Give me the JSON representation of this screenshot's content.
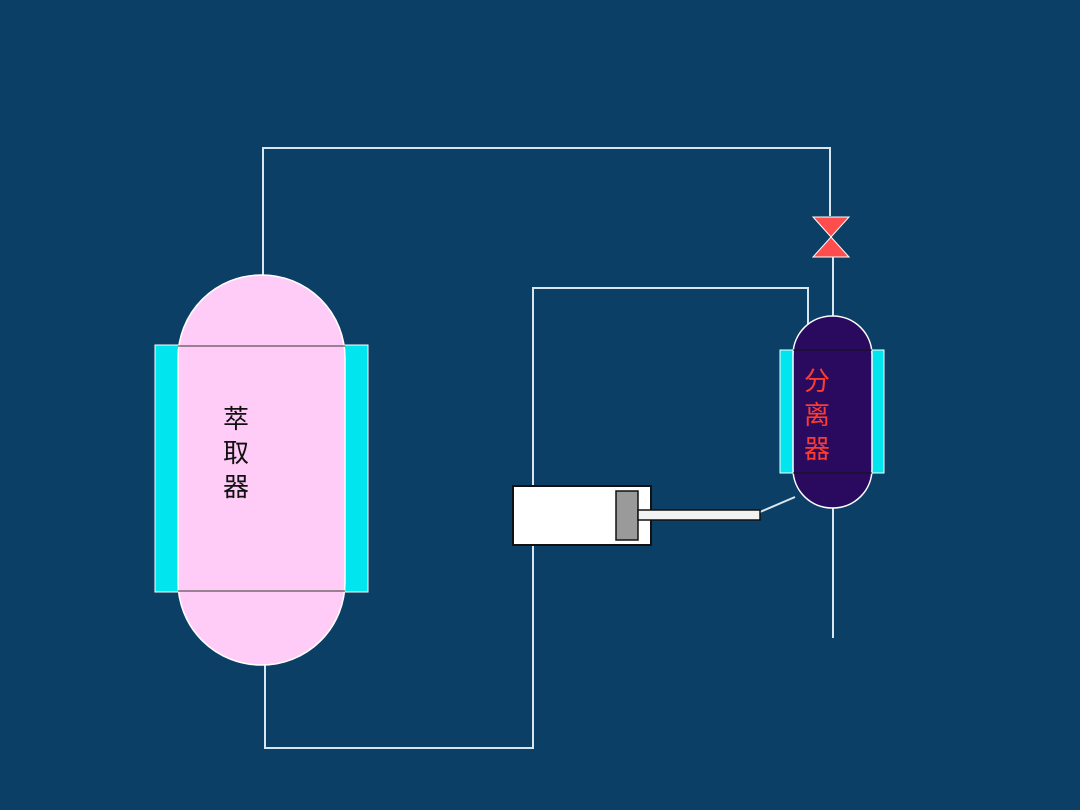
{
  "diagram": {
    "extractor": {
      "label_chars": [
        "萃",
        "取",
        "器"
      ]
    },
    "separator": {
      "label_chars": [
        "分",
        "离",
        "器"
      ]
    }
  },
  "colors": {
    "background": "#0b3f66",
    "extractor_body": "#ffccf7",
    "jacket": "#00e5ee",
    "separator_body": "#2a0a5e",
    "valve": "#ff4d4d",
    "pipe": "#d8e6ef",
    "label_dark": "#111111",
    "label_red": "#ff3b30"
  }
}
